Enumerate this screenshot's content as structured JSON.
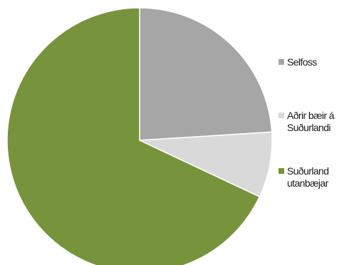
{
  "chart_data": {
    "type": "pie",
    "title": "",
    "start_angle_deg": 0,
    "direction": "clockwise",
    "legend_position": "right",
    "slices": [
      {
        "label": "Selfoss",
        "value": 24,
        "color": "#a6a6a6"
      },
      {
        "label": "Aðrir bæir á\nSuðurlandi",
        "value": 8,
        "color": "#d9d9d9"
      },
      {
        "label": "Suðurland\nutanbæjar",
        "value": 68,
        "color": "#77933c"
      }
    ]
  }
}
